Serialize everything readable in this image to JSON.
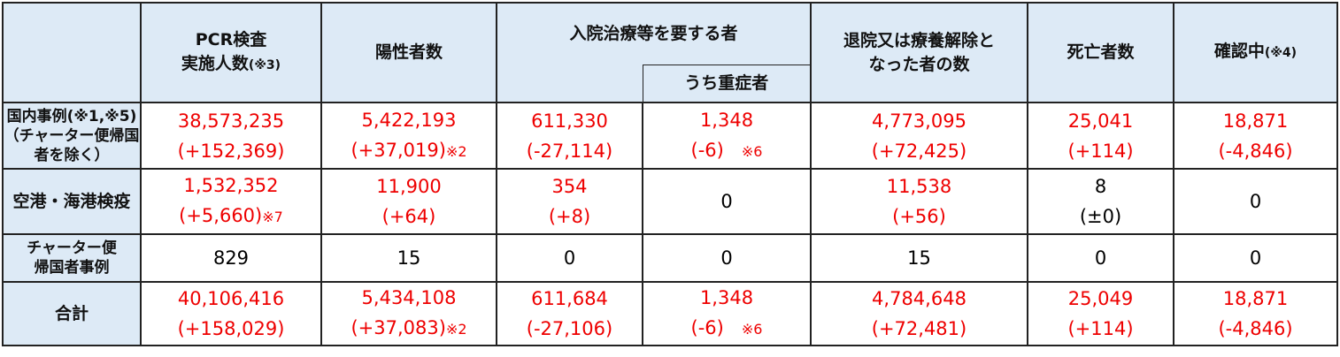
{
  "header": {
    "corner": "",
    "pcr": [
      "PCR検査",
      "実施人数",
      "(※3)"
    ],
    "positive": "陽性者数",
    "hospitalized": "入院治療等を要する者",
    "severe": "うち重症者",
    "discharged": [
      "退院又は療養解除と",
      "なった者の数"
    ],
    "deaths": "死亡者数",
    "confirming": [
      "確認中",
      "(※4)"
    ]
  },
  "rows": [
    {
      "label": [
        "国内事例(※1,※5)",
        "（チャーター便帰国",
        "者を除く）"
      ],
      "red": true,
      "cells": [
        [
          "38,573,235",
          "(+152,369)",
          ""
        ],
        [
          "5,422,193",
          "(+37,019)",
          "※2"
        ],
        [
          "611,330",
          "(-27,114)",
          ""
        ],
        [
          "1,348",
          "(-6)",
          "※6"
        ],
        [
          "4,773,095",
          "(+72,425)",
          ""
        ],
        [
          "25,041",
          "(+114)",
          ""
        ],
        [
          "18,871",
          "(-4,846)",
          ""
        ]
      ]
    },
    {
      "label": [
        "空港・海港検疫"
      ],
      "red": true,
      "cells": [
        [
          "1,532,352",
          "(+5,660)",
          "※7"
        ],
        [
          "11,900",
          "(+64)",
          ""
        ],
        [
          "354",
          "(+8)",
          ""
        ],
        [
          "0",
          "",
          ""
        ],
        [
          "11,538",
          "(+56)",
          ""
        ],
        [
          "8",
          "(±0)",
          ""
        ],
        [
          "0",
          "",
          ""
        ]
      ]
    },
    {
      "label": [
        "チャーター便",
        "帰国者事例"
      ],
      "red": false,
      "cells": [
        [
          "829",
          "",
          ""
        ],
        [
          "15",
          "",
          ""
        ],
        [
          "0",
          "",
          ""
        ],
        [
          "0",
          "",
          ""
        ],
        [
          "15",
          "",
          ""
        ],
        [
          "0",
          "",
          ""
        ],
        [
          "0",
          "",
          ""
        ]
      ]
    },
    {
      "label": [
        "合計"
      ],
      "red": true,
      "cells": [
        [
          "40,106,416",
          "(+158,029)",
          ""
        ],
        [
          "5,434,108",
          "(+37,083)",
          "※2"
        ],
        [
          "611,684",
          "(-27,106)",
          ""
        ],
        [
          "1,348",
          "(-6)",
          "※6"
        ],
        [
          "4,784,648",
          "(+72,481)",
          ""
        ],
        [
          "25,049",
          "(+114)",
          ""
        ],
        [
          "18,871",
          "(-4,846)",
          ""
        ]
      ]
    }
  ],
  "colors": {
    "header_bg": "#ddeaf6",
    "value_red": "#e00000"
  }
}
